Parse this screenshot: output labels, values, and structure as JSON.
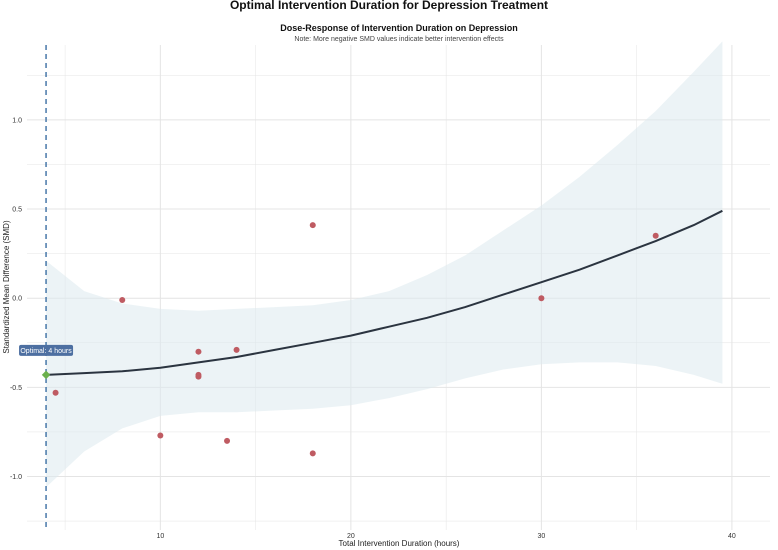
{
  "page": {
    "title": "Optimal Intervention Duration for Depression Treatment"
  },
  "chart_data": {
    "type": "scatter",
    "subtitle": "Dose-Response of Intervention Duration on Depression",
    "note": "Note: More negative SMD values indicate better intervention effects",
    "xlabel": "Total Intervention Duration (hours)",
    "ylabel": "Standardized Mean Difference (SMD)",
    "xlim": [
      3.0,
      42.0
    ],
    "ylim": [
      -1.3,
      1.42
    ],
    "xticks": [
      10,
      20,
      30,
      40
    ],
    "xtick_labels": [
      "10",
      "20",
      "30",
      "40"
    ],
    "yticks": [
      -1.0,
      -0.5,
      0.0,
      0.5,
      1.0
    ],
    "ytick_labels": [
      "-1.0",
      "-0.5",
      "0.0",
      "0.5",
      "1.0"
    ],
    "grid": true,
    "points": [
      {
        "x": 4.5,
        "y": -0.53
      },
      {
        "x": 8,
        "y": -0.01
      },
      {
        "x": 10,
        "y": -0.77
      },
      {
        "x": 12,
        "y": -0.3
      },
      {
        "x": 12,
        "y": -0.43
      },
      {
        "x": 12,
        "y": -0.44
      },
      {
        "x": 13.5,
        "y": -0.8
      },
      {
        "x": 14,
        "y": -0.29
      },
      {
        "x": 18,
        "y": 0.41
      },
      {
        "x": 18,
        "y": -0.87
      },
      {
        "x": 30,
        "y": 0.0
      },
      {
        "x": 36,
        "y": 0.35
      }
    ],
    "fit": {
      "x": [
        4,
        6,
        8,
        10,
        12,
        14,
        16,
        18,
        20,
        22,
        24,
        26,
        28,
        30,
        32,
        34,
        36,
        38,
        39.5
      ],
      "y": [
        -0.43,
        -0.42,
        -0.41,
        -0.39,
        -0.36,
        -0.33,
        -0.29,
        -0.25,
        -0.21,
        -0.16,
        -0.11,
        -0.05,
        0.02,
        0.09,
        0.16,
        0.24,
        0.32,
        0.41,
        0.49
      ],
      "lower": [
        -1.06,
        -0.86,
        -0.73,
        -0.66,
        -0.64,
        -0.64,
        -0.63,
        -0.62,
        -0.6,
        -0.56,
        -0.51,
        -0.45,
        -0.4,
        -0.37,
        -0.36,
        -0.36,
        -0.38,
        -0.43,
        -0.48
      ],
      "upper": [
        0.21,
        0.04,
        -0.03,
        -0.06,
        -0.07,
        -0.06,
        -0.05,
        -0.04,
        -0.01,
        0.04,
        0.13,
        0.24,
        0.38,
        0.52,
        0.68,
        0.86,
        1.05,
        1.27,
        1.44
      ]
    },
    "optimal": {
      "x": 4,
      "y": -0.43,
      "label": "Optimal: 4 hours"
    },
    "colors": {
      "point": "#bf5b62",
      "fit_line": "#2b3440",
      "ribbon": "#dde9ef",
      "vline": "#3b6fa3",
      "optimal_marker": "#6ab04c",
      "label_bg": "#4d6fa1",
      "grid": "#e4e4e4"
    }
  }
}
